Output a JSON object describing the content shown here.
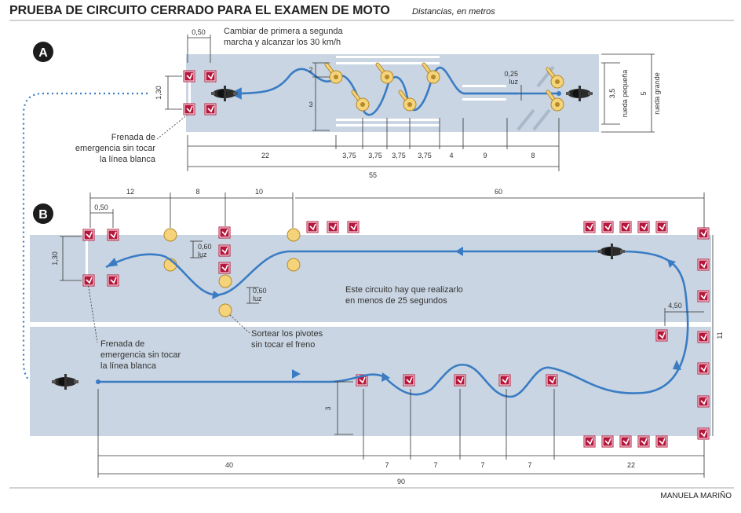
{
  "header": {
    "title": "PRUEBA DE CIRCUITO CERRADO PARA EL EXAMEN DE MOTO",
    "subtitle": "Distancias, en metros"
  },
  "section_a": {
    "badge": "A",
    "note_line1": "Cambiar de primera a segunda",
    "note_line2": "marcha y alcanzar los 30 km/h",
    "brake_line1": "Frenada de",
    "brake_line2": "emergencia sin tocar",
    "brake_line3": "la línea blanca",
    "dims": {
      "gate_width": "0,50",
      "gate_height": "1,30",
      "lane_upper": "2",
      "lane_lower": "3",
      "light": "0,25",
      "light_unit": "luz",
      "small_wheel": "3,5",
      "small_wheel_label": "rueda pequeña",
      "big_wheel": "5",
      "big_wheel_label": "rueda grande",
      "d22": "22",
      "s1": "3,75",
      "s2": "3,75",
      "s3": "3,75",
      "s4": "3,75",
      "d4": "4",
      "d9": "9",
      "d8": "8",
      "total": "55"
    }
  },
  "section_b": {
    "badge": "B",
    "note_line1": "Este circuito hay que realizarlo",
    "note_line2": "en menos de 25 segundos",
    "pivot_line1": "Sortear los pivotes",
    "pivot_line2": "sin tocar el freno",
    "brake_line1": "Frenada de",
    "brake_line2": "emergencia sin tocar",
    "brake_line3": "la línea blanca",
    "dims": {
      "top12": "12",
      "top8": "8",
      "top10": "10",
      "top60": "60",
      "gate_width": "0,50",
      "gate_height": "1,30",
      "light1": "0,60",
      "light1_unit": "luz",
      "light2": "0,60",
      "light2_unit": "luz",
      "offset": "4,50",
      "height": "11",
      "wave": "3",
      "b40": "40",
      "b7a": "7",
      "b7b": "7",
      "b7c": "7",
      "b7d": "7",
      "b22": "22",
      "total": "90"
    }
  },
  "footer": {
    "author": "MANUELA MARIÑO"
  },
  "colors": {
    "track": "#c9d5e2",
    "path": "#3a7cc4",
    "cone": "#b5163b",
    "pivot": "#f5d37a"
  }
}
